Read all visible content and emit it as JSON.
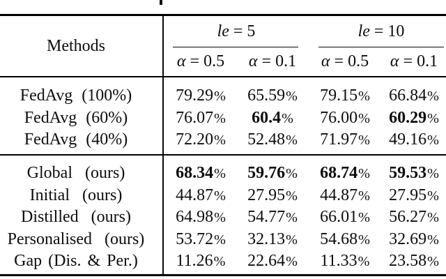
{
  "misc": {
    "percent": "%",
    "text_color": "#0d0d0d",
    "rule_color": "#000000",
    "background": "#ffffff"
  },
  "header": {
    "methods_label": "Methods",
    "groups": [
      {
        "var": "le",
        "rest": " = 5"
      },
      {
        "var": "le",
        "rest": " = 10"
      }
    ],
    "subcols": [
      {
        "var": "α",
        "rest": " = 0.5"
      },
      {
        "var": "α",
        "rest": " = 0.1"
      },
      {
        "var": "α",
        "rest": " = 0.5"
      },
      {
        "var": "α",
        "rest": " = 0.1"
      }
    ]
  },
  "body": {
    "rows": [
      {
        "label": "FedAvg (100%)",
        "values": [
          "79.29",
          "65.59",
          "79.15",
          "66.84"
        ]
      },
      {
        "label": "FedAvg (60%)",
        "values": [
          "76.07",
          "60.4",
          "76.00",
          "60.29"
        ]
      },
      {
        "label": "FedAvg (40%)",
        "values": [
          "72.20",
          "52.48",
          "71.97",
          "49.16"
        ]
      },
      {
        "label": "Global (ours)",
        "values": [
          "68.34",
          "59.76",
          "68.74",
          "59.53"
        ]
      },
      {
        "label": "Initial (ours)",
        "values": [
          "44.87",
          "27.95",
          "44.87",
          "27.95"
        ]
      },
      {
        "label": "Distilled (ours)",
        "values": [
          "64.98",
          "54.77",
          "66.01",
          "56.27"
        ]
      },
      {
        "label": "Personalised (ours)",
        "values": [
          "53.72",
          "32.13",
          "54.68",
          "32.69"
        ]
      },
      {
        "label": "Gap (Dis. & Per.)",
        "values": [
          "11.26",
          "22.64",
          "11.33",
          "23.58"
        ]
      }
    ]
  }
}
